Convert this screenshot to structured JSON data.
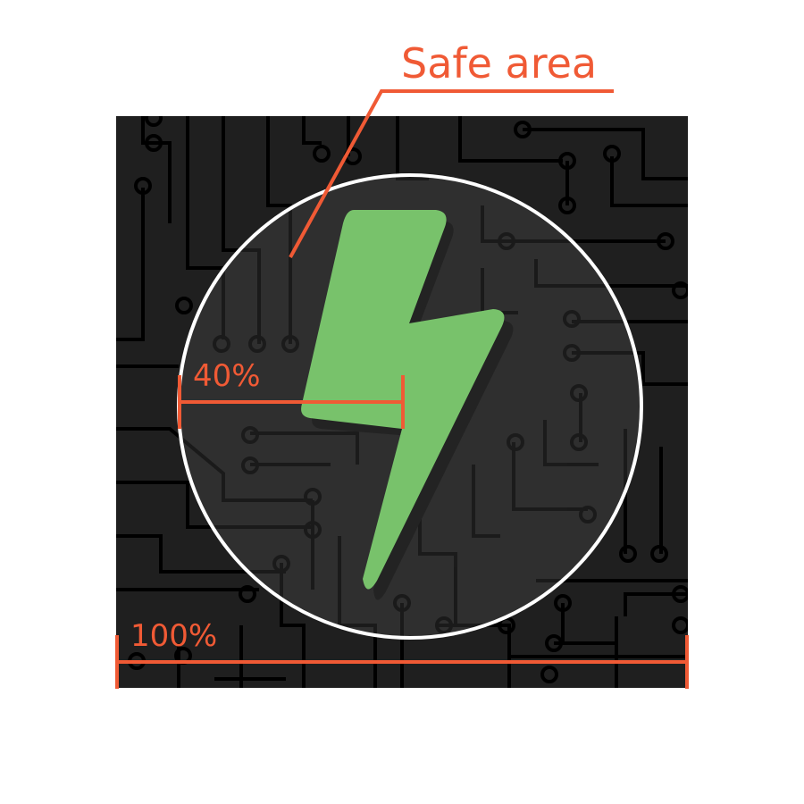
{
  "labels": {
    "safe_area": "Safe area",
    "inner_width": "40%",
    "full_width": "100%"
  },
  "colors": {
    "annotation": "#f05a35",
    "icon_background": "#1f1f1f",
    "circuit_trace": "#000000",
    "safe_area_fill": "#2f2f2f",
    "safe_area_stroke": "#ffffff",
    "bolt": "#78c26b",
    "bolt_shadow": "#232323",
    "page_background": "#ffffff"
  },
  "icons": [
    "circuit-board-pattern",
    "lightning-bolt-icon"
  ]
}
